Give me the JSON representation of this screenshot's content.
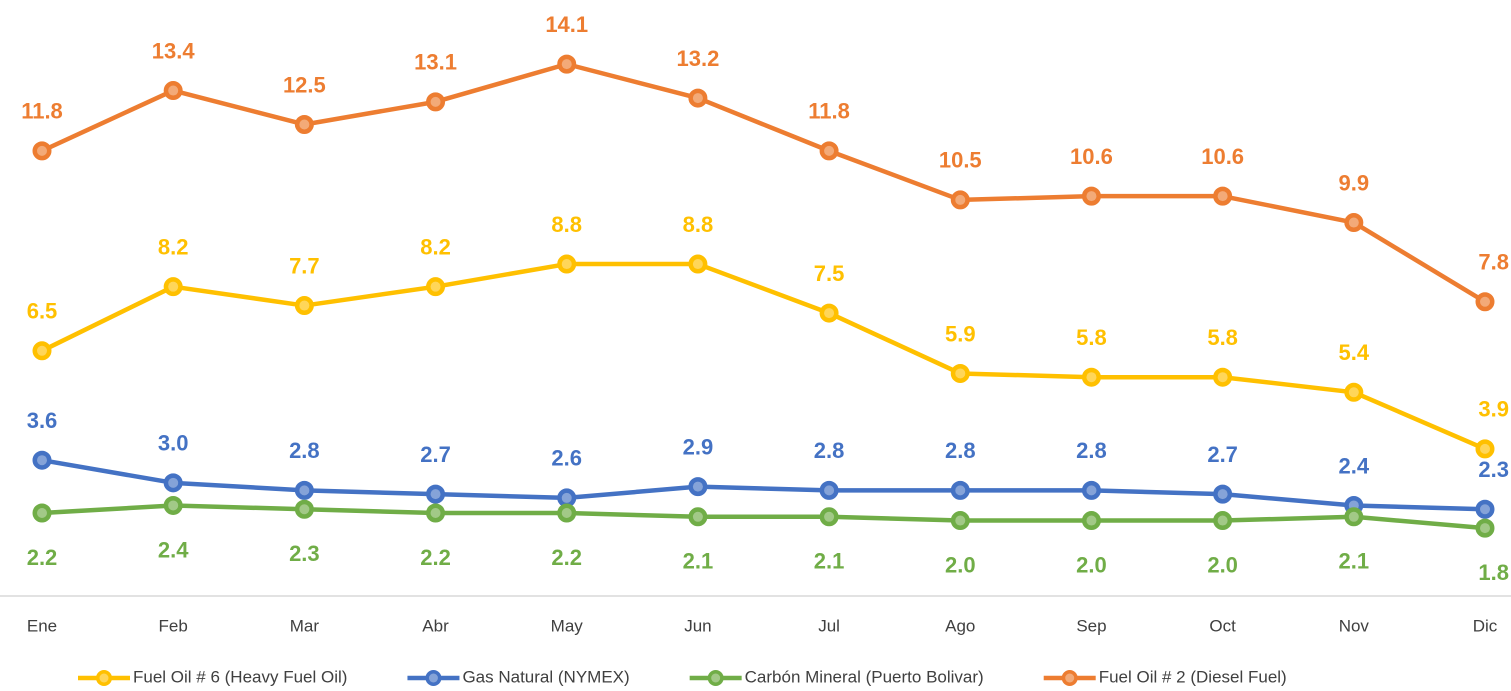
{
  "chart_data": {
    "type": "line",
    "categories": [
      "Ene",
      "Feb",
      "Mar",
      "Abr",
      "May",
      "Jun",
      "Jul",
      "Ago",
      "Sep",
      "Oct",
      "Nov",
      "Dic"
    ],
    "ylim": [
      0,
      15.8
    ],
    "series": [
      {
        "name": "Fuel Oil # 6 (Heavy Fuel Oil)",
        "color": "#FFC000",
        "values": [
          6.5,
          8.2,
          7.7,
          8.2,
          8.8,
          8.8,
          7.5,
          5.9,
          5.8,
          5.8,
          5.4,
          3.9
        ],
        "value_labels": [
          "6.5",
          "8.2",
          "7.7",
          "8.2",
          "8.8",
          "8.8",
          "7.5",
          "5.9",
          "5.8",
          "5.8",
          "5.4",
          "3.9"
        ]
      },
      {
        "name": "Gas Natural (NYMEX)",
        "color": "#4472C4",
        "values": [
          3.6,
          3.0,
          2.8,
          2.7,
          2.6,
          2.9,
          2.8,
          2.8,
          2.8,
          2.7,
          2.4,
          2.3
        ],
        "value_labels": [
          "3.6",
          "3.0",
          "2.8",
          "2.7",
          "2.6",
          "2.9",
          "2.8",
          "2.8",
          "2.8",
          "2.7",
          "2.4",
          "2.3"
        ]
      },
      {
        "name": "Carbón Mineral (Puerto Bolivar)",
        "color": "#70AD47",
        "values": [
          2.2,
          2.4,
          2.3,
          2.2,
          2.2,
          2.1,
          2.1,
          2.0,
          2.0,
          2.0,
          2.1,
          1.8
        ],
        "value_labels": [
          "2.2",
          "2.4",
          "2.3",
          "2.2",
          "2.2",
          "2.1",
          "2.1",
          "2.0",
          "2.0",
          "2.0",
          "2.1",
          "1.8"
        ]
      },
      {
        "name": "Fuel Oil # 2 (Diesel Fuel)",
        "color": "#ED7D31",
        "values": [
          11.8,
          13.4,
          12.5,
          13.1,
          14.1,
          13.2,
          11.8,
          10.5,
          10.6,
          10.6,
          9.9,
          7.8
        ],
        "value_labels": [
          "11.8",
          "13.4",
          "12.5",
          "13.1",
          "14.1",
          "13.2",
          "11.8",
          "10.5",
          "10.6",
          "10.6",
          "9.9",
          "7.8"
        ]
      }
    ]
  }
}
